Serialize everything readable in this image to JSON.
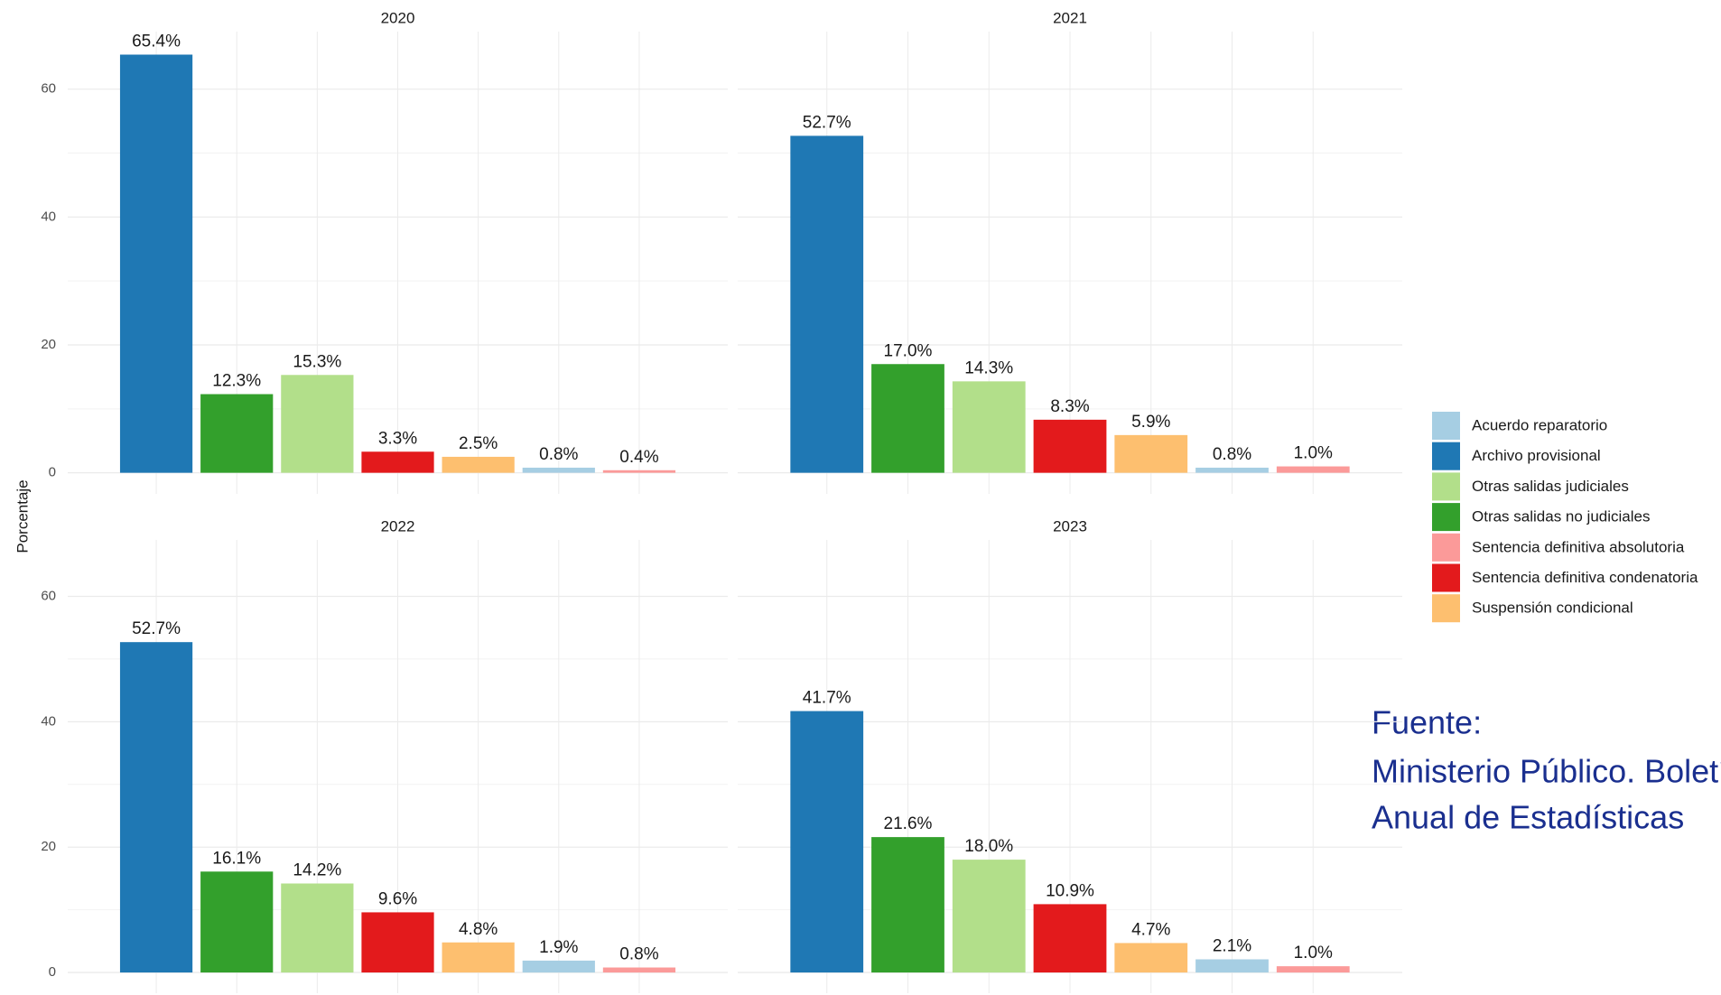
{
  "chart_data": {
    "type": "bar",
    "ylabel": "Porcentaje",
    "ylim": [
      -3.3,
      69
    ],
    "yticks": [
      0,
      20,
      40,
      60
    ],
    "grid": true,
    "facets": [
      "2020",
      "2021",
      "2022",
      "2023"
    ],
    "series": [
      {
        "name": "Archivo provisional",
        "color": "#1f78b4",
        "values": [
          65.4,
          52.7,
          52.7,
          41.7
        ],
        "value_labels": [
          "65.4%",
          "52.7%",
          "52.7%",
          "41.7%"
        ]
      },
      {
        "name": "Otras salidas no judiciales",
        "color": "#33a02c",
        "values": [
          12.3,
          17.0,
          16.1,
          21.6
        ],
        "value_labels": [
          "12.3%",
          "17.0%",
          "16.1%",
          "21.6%"
        ]
      },
      {
        "name": "Otras salidas judiciales",
        "color": "#b2df8a",
        "values": [
          15.3,
          14.3,
          14.2,
          18.0
        ],
        "value_labels": [
          "15.3%",
          "14.3%",
          "14.2%",
          "18.0%"
        ]
      },
      {
        "name": "Sentencia definitiva condenatoria",
        "color": "#e31a1c",
        "values": [
          3.3,
          8.3,
          9.6,
          10.9
        ],
        "value_labels": [
          "3.3%",
          "8.3%",
          "9.6%",
          "10.9%"
        ]
      },
      {
        "name": "Suspensión condicional",
        "color": "#fdbf6f",
        "values": [
          2.5,
          5.9,
          4.8,
          4.7
        ],
        "value_labels": [
          "2.5%",
          "5.9%",
          "4.8%",
          "4.7%"
        ]
      },
      {
        "name": "Acuerdo reparatorio",
        "color": "#a6cee3",
        "values": [
          0.8,
          0.8,
          1.9,
          2.1
        ],
        "value_labels": [
          "0.8%",
          "0.8%",
          "1.9%",
          "2.1%"
        ]
      },
      {
        "name": "Sentencia definitiva absolutoria",
        "color": "#fb9a99",
        "values": [
          0.4,
          1.0,
          0.8,
          1.0
        ],
        "value_labels": [
          "0.4%",
          "1.0%",
          "0.8%",
          "1.0%"
        ]
      }
    ],
    "source": {
      "heading": "Fuente:",
      "lines": [
        "Ministerio Público. Boletín",
        "Anual de Estadísticas"
      ]
    }
  }
}
